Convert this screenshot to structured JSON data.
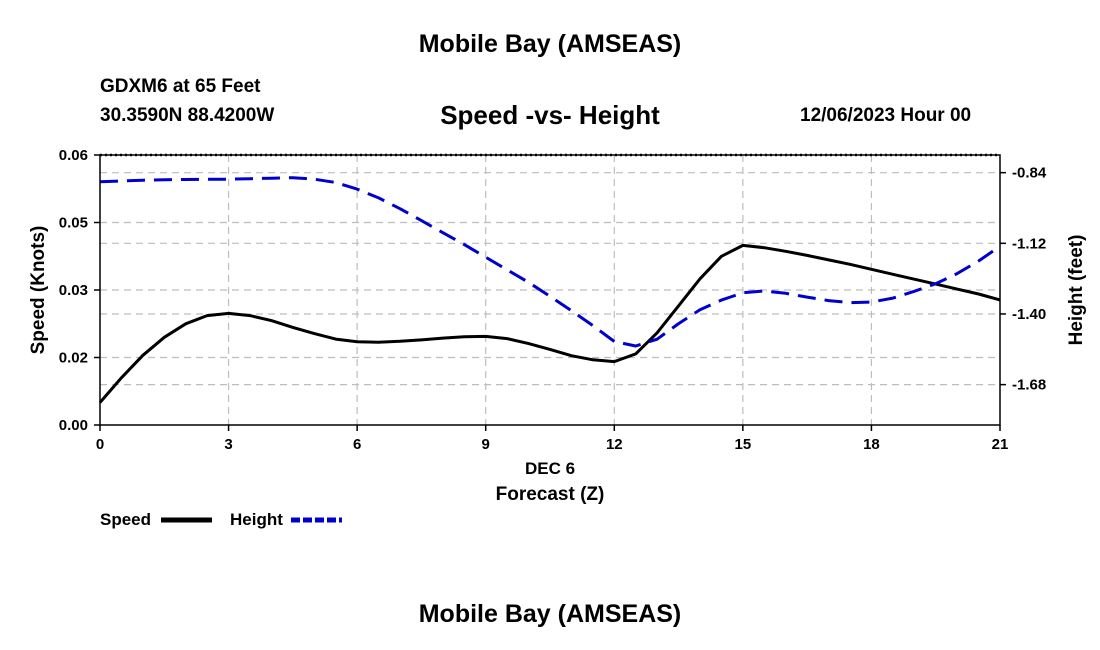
{
  "header": {
    "top_title": "Mobile Bay (AMSEAS)",
    "station": "GDXM6 at 65 Feet",
    "location": "30.3590N  88.4200W",
    "datetime": "12/06/2023 Hour 00",
    "bottom_title": "Mobile Bay (AMSEAS)"
  },
  "chart_data": {
    "type": "line",
    "title": "Speed -vs- Height",
    "xlabel": "Forecast (Z)",
    "xlabel_date": "DEC 6",
    "ylabel": "Speed (Knots)",
    "y2label": "Height (feet)",
    "xlim": [
      0,
      21
    ],
    "ylim": [
      0,
      0.06
    ],
    "y2lim": [
      -1.84,
      -0.77
    ],
    "x_ticks": [
      0,
      3,
      6,
      9,
      12,
      15,
      18,
      21
    ],
    "x_tick_labels": [
      "0",
      "3",
      "6",
      "9",
      "12",
      "15",
      "18",
      "21"
    ],
    "y_ticks": [
      0,
      0.015,
      0.03,
      0.045,
      0.06
    ],
    "y_tick_labels": [
      "0.00",
      "0.02",
      "0.03",
      "0.05",
      "0.06"
    ],
    "y2_ticks": [
      -0.84,
      -1.12,
      -1.4,
      -1.68
    ],
    "y2_tick_labels": [
      "-0.84",
      "-1.12",
      "-1.40",
      "-1.68"
    ],
    "grid": true,
    "series": [
      {
        "name": "Speed",
        "axis": "left",
        "color": "#000000",
        "dashed": false,
        "points": [
          [
            0,
            0.005
          ],
          [
            0.5,
            0.0105
          ],
          [
            1,
            0.0155
          ],
          [
            1.5,
            0.0195
          ],
          [
            2,
            0.0225
          ],
          [
            2.5,
            0.0243
          ],
          [
            3,
            0.0248
          ],
          [
            3.5,
            0.0243
          ],
          [
            4,
            0.0232
          ],
          [
            4.5,
            0.0217
          ],
          [
            5,
            0.0203
          ],
          [
            5.5,
            0.0191
          ],
          [
            6,
            0.0185
          ],
          [
            6.5,
            0.0184
          ],
          [
            7,
            0.0186
          ],
          [
            7.5,
            0.0189
          ],
          [
            8,
            0.0193
          ],
          [
            8.5,
            0.0196
          ],
          [
            9,
            0.0197
          ],
          [
            9.5,
            0.0192
          ],
          [
            10,
            0.0181
          ],
          [
            10.5,
            0.0168
          ],
          [
            11,
            0.0154
          ],
          [
            11.5,
            0.0145
          ],
          [
            12,
            0.0141
          ],
          [
            12.5,
            0.0158
          ],
          [
            13,
            0.0205
          ],
          [
            13.5,
            0.0265
          ],
          [
            14,
            0.0325
          ],
          [
            14.5,
            0.0375
          ],
          [
            15,
            0.0399
          ],
          [
            15.5,
            0.0394
          ],
          [
            16,
            0.0386
          ],
          [
            16.5,
            0.0377
          ],
          [
            17,
            0.0367
          ],
          [
            17.5,
            0.0357
          ],
          [
            18,
            0.0346
          ],
          [
            18.5,
            0.0335
          ],
          [
            19,
            0.0324
          ],
          [
            19.5,
            0.0313
          ],
          [
            20,
            0.0302
          ],
          [
            20.5,
            0.0291
          ],
          [
            21,
            0.0278
          ]
        ]
      },
      {
        "name": "Height",
        "axis": "right",
        "color": "#0000cc",
        "dashed": true,
        "points": [
          [
            0,
            -0.876
          ],
          [
            0.5,
            -0.873
          ],
          [
            1,
            -0.87
          ],
          [
            1.5,
            -0.868
          ],
          [
            2,
            -0.867
          ],
          [
            2.5,
            -0.866
          ],
          [
            3,
            -0.866
          ],
          [
            3.5,
            -0.864
          ],
          [
            4,
            -0.862
          ],
          [
            4.5,
            -0.86
          ],
          [
            5,
            -0.866
          ],
          [
            5.5,
            -0.879
          ],
          [
            6,
            -0.905
          ],
          [
            6.5,
            -0.94
          ],
          [
            7,
            -0.983
          ],
          [
            7.5,
            -1.03
          ],
          [
            8,
            -1.078
          ],
          [
            8.5,
            -1.125
          ],
          [
            9,
            -1.175
          ],
          [
            9.5,
            -1.225
          ],
          [
            10,
            -1.275
          ],
          [
            10.5,
            -1.33
          ],
          [
            11,
            -1.387
          ],
          [
            11.5,
            -1.446
          ],
          [
            12,
            -1.509
          ],
          [
            12.5,
            -1.527
          ],
          [
            13,
            -1.5
          ],
          [
            13.5,
            -1.438
          ],
          [
            14,
            -1.383
          ],
          [
            14.5,
            -1.345
          ],
          [
            15,
            -1.316
          ],
          [
            15.5,
            -1.309
          ],
          [
            16,
            -1.318
          ],
          [
            16.5,
            -1.333
          ],
          [
            17,
            -1.347
          ],
          [
            17.5,
            -1.355
          ],
          [
            18,
            -1.353
          ],
          [
            18.5,
            -1.337
          ],
          [
            19,
            -1.31
          ],
          [
            19.5,
            -1.28
          ],
          [
            20,
            -1.24
          ],
          [
            20.5,
            -1.19
          ],
          [
            21,
            -1.132
          ]
        ]
      }
    ],
    "legend": [
      {
        "label": "Speed",
        "color": "#000000",
        "dashed": false
      },
      {
        "label": "Height",
        "color": "#0000cc",
        "dashed": true
      }
    ]
  }
}
